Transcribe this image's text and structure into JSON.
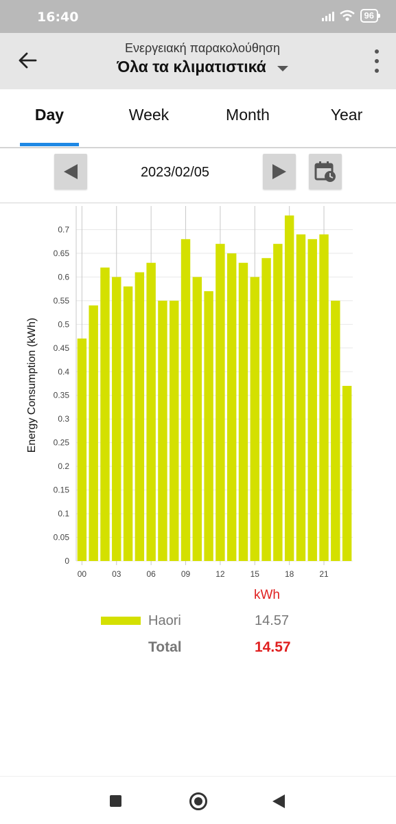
{
  "status_bar": {
    "time": "16:40",
    "battery": "96"
  },
  "app_bar": {
    "subtitle": "Ενεργειακή παρακολούθηση",
    "title": "Όλα τα κλιματιστικά"
  },
  "tabs": [
    {
      "label": "Day",
      "active": true
    },
    {
      "label": "Week",
      "active": false
    },
    {
      "label": "Month",
      "active": false
    },
    {
      "label": "Year",
      "active": false
    }
  ],
  "date_bar": {
    "date": "2023/02/05"
  },
  "colors": {
    "bar": "#d4e000",
    "accent": "#1e88e5",
    "total": "#e02020"
  },
  "chart_data": {
    "type": "bar",
    "ylabel": "Energy Consumption (kWh)",
    "ylim": [
      0,
      0.75
    ],
    "yticks": [
      0,
      0.05,
      0.1,
      0.15,
      0.2,
      0.25,
      0.3,
      0.35,
      0.4,
      0.45,
      0.5,
      0.55,
      0.6,
      0.65,
      0.7
    ],
    "xtick_labels": [
      "00",
      "03",
      "06",
      "09",
      "12",
      "15",
      "18",
      "21"
    ],
    "categories": [
      "00",
      "01",
      "02",
      "03",
      "04",
      "05",
      "06",
      "07",
      "08",
      "09",
      "10",
      "11",
      "12",
      "13",
      "14",
      "15",
      "16",
      "17",
      "18",
      "19",
      "20",
      "21",
      "22",
      "23"
    ],
    "series": [
      {
        "name": "Haori",
        "values": [
          0.47,
          0.54,
          0.62,
          0.6,
          0.58,
          0.61,
          0.63,
          0.55,
          0.55,
          0.68,
          0.6,
          0.57,
          0.67,
          0.65,
          0.63,
          0.6,
          0.64,
          0.67,
          0.73,
          0.69,
          0.68,
          0.69,
          0.55,
          0.37
        ]
      }
    ]
  },
  "legend": {
    "unit": "kWh",
    "items": [
      {
        "name": "Haori",
        "value": "14.57"
      }
    ],
    "total_label": "Total",
    "total_value": "14.57"
  }
}
